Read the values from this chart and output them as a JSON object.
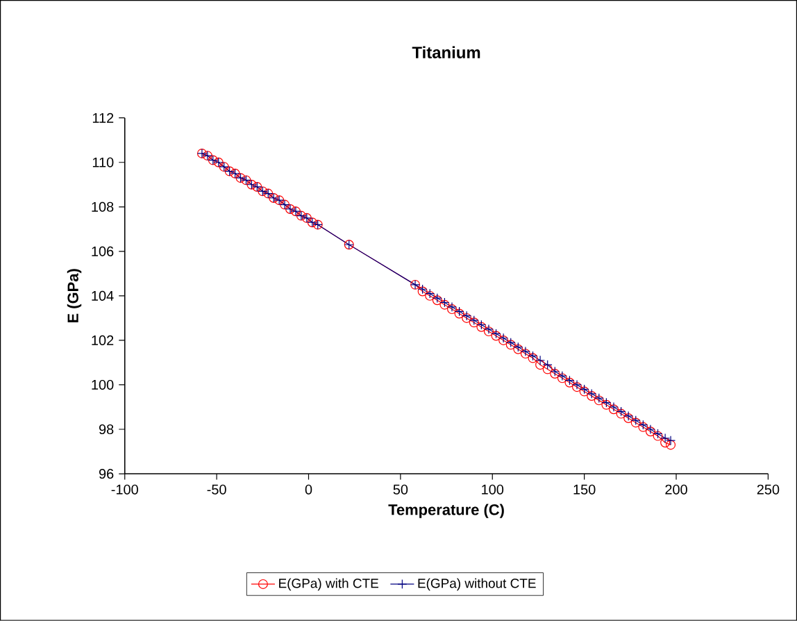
{
  "chart_data": {
    "type": "line",
    "title": "Titanium",
    "xlabel": "Temperature (C)",
    "ylabel": "E (GPa)",
    "x": [
      -58,
      -55,
      -52,
      -49,
      -46,
      -43,
      -40,
      -37,
      -34,
      -31,
      -28,
      -25,
      -22,
      -19,
      -16,
      -13,
      -10,
      -7,
      -4,
      -1,
      2,
      5,
      22,
      58,
      62,
      66,
      70,
      74,
      78,
      82,
      86,
      90,
      94,
      98,
      102,
      106,
      110,
      114,
      118,
      122,
      126,
      130,
      134,
      138,
      142,
      146,
      150,
      154,
      158,
      162,
      166,
      170,
      174,
      178,
      182,
      186,
      190,
      194,
      197
    ],
    "series": [
      {
        "name": "E(GPa) with CTE",
        "color": "#ff0000",
        "marker": "circle",
        "values": [
          110.4,
          110.3,
          110.1,
          110.0,
          109.8,
          109.6,
          109.5,
          109.3,
          109.2,
          109.0,
          108.9,
          108.7,
          108.6,
          108.4,
          108.3,
          108.1,
          107.9,
          107.8,
          107.6,
          107.5,
          107.3,
          107.2,
          106.3,
          104.5,
          104.2,
          104.0,
          103.8,
          103.6,
          103.4,
          103.2,
          103.0,
          102.8,
          102.6,
          102.4,
          102.2,
          102.0,
          101.8,
          101.6,
          101.4,
          101.2,
          100.9,
          100.7,
          100.5,
          100.3,
          100.1,
          99.9,
          99.7,
          99.5,
          99.3,
          99.1,
          98.9,
          98.7,
          98.5,
          98.3,
          98.1,
          97.9,
          97.7,
          97.4,
          97.3
        ]
      },
      {
        "name": "E(GPa) without CTE",
        "color": "#000080",
        "marker": "cross",
        "values": [
          110.4,
          110.3,
          110.1,
          110.0,
          109.8,
          109.6,
          109.5,
          109.3,
          109.2,
          109.0,
          108.9,
          108.7,
          108.6,
          108.4,
          108.3,
          108.1,
          107.9,
          107.8,
          107.6,
          107.5,
          107.3,
          107.2,
          106.3,
          104.5,
          104.3,
          104.1,
          103.9,
          103.7,
          103.5,
          103.3,
          103.1,
          102.9,
          102.7,
          102.5,
          102.3,
          102.1,
          101.9,
          101.7,
          101.5,
          101.3,
          101.1,
          100.9,
          100.6,
          100.4,
          100.2,
          100.0,
          99.8,
          99.6,
          99.4,
          99.2,
          99.0,
          98.8,
          98.6,
          98.4,
          98.2,
          98.0,
          97.8,
          97.6,
          97.5
        ]
      }
    ],
    "xlim": [
      -100,
      250
    ],
    "xticks": [
      -100,
      -50,
      0,
      50,
      100,
      150,
      200,
      250
    ],
    "ylim": [
      96,
      112
    ],
    "yticks": [
      96,
      98,
      100,
      102,
      104,
      106,
      108,
      110,
      112
    ],
    "legend": "bottom"
  }
}
